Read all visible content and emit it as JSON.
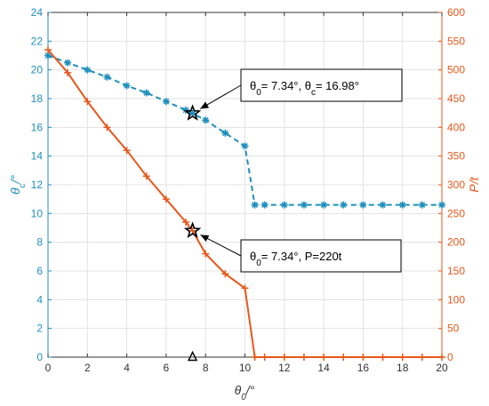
{
  "chart_data": {
    "type": "line",
    "xlabel": "θ0/°",
    "ylabel_left": "θc/°",
    "ylabel_right": "P/t",
    "xlim": [
      0,
      20
    ],
    "ylim_left": [
      0,
      24
    ],
    "ylim_right": [
      0,
      600
    ],
    "grid": true,
    "x_ticks": [
      0,
      2,
      4,
      6,
      8,
      10,
      12,
      14,
      16,
      18,
      20
    ],
    "y_left_ticks": [
      0,
      2,
      4,
      6,
      8,
      10,
      12,
      14,
      16,
      18,
      20,
      22,
      24
    ],
    "y_right_ticks": [
      0,
      50,
      100,
      150,
      200,
      250,
      300,
      350,
      400,
      450,
      500,
      550,
      600
    ],
    "colors": {
      "left": "#1f8fbd",
      "right": "#e8571a"
    },
    "series": [
      {
        "axis": "left",
        "color": "#1f8fbd",
        "line": "dashed",
        "marker": "asterisk",
        "x": [
          0,
          1,
          2,
          3,
          4,
          5,
          6,
          7,
          7.34,
          8,
          9,
          10,
          10.5,
          11,
          12,
          13,
          14,
          15,
          16,
          17,
          18,
          19,
          20
        ],
        "y": [
          21.0,
          20.5,
          20.0,
          19.5,
          18.9,
          18.4,
          17.8,
          17.2,
          16.98,
          16.5,
          15.6,
          14.7,
          10.6,
          10.6,
          10.6,
          10.6,
          10.6,
          10.6,
          10.6,
          10.6,
          10.6,
          10.6,
          10.6
        ]
      },
      {
        "axis": "right",
        "color": "#e8571a",
        "line": "solid",
        "marker": "plus",
        "x": [
          0,
          1,
          2,
          3,
          4,
          5,
          6,
          7,
          7.34,
          8,
          9,
          10,
          10.5,
          11,
          12,
          13,
          14,
          15,
          16,
          17,
          18,
          19,
          20
        ],
        "y": [
          535,
          495,
          445,
          400,
          360,
          315,
          275,
          235,
          220,
          180,
          145,
          120,
          0,
          0,
          0,
          0,
          0,
          0,
          0,
          0,
          0,
          0,
          0
        ]
      }
    ],
    "highlights": [
      {
        "axis": "left",
        "x": 7.34,
        "y": 16.98,
        "marker": "star"
      },
      {
        "axis": "right",
        "x": 7.34,
        "y": 220,
        "marker": "star"
      },
      {
        "axis": "left",
        "x": 7.34,
        "y": 0,
        "marker": "triangle"
      }
    ],
    "annotations": [
      {
        "text": "θ0= 7.34°, θc= 16.98°",
        "target_axis": "left",
        "target_x": 7.34,
        "target_y": 16.98
      },
      {
        "text": "θ0= 7.34°, P=220t",
        "target_axis": "right",
        "target_x": 7.34,
        "target_y": 220
      }
    ]
  }
}
